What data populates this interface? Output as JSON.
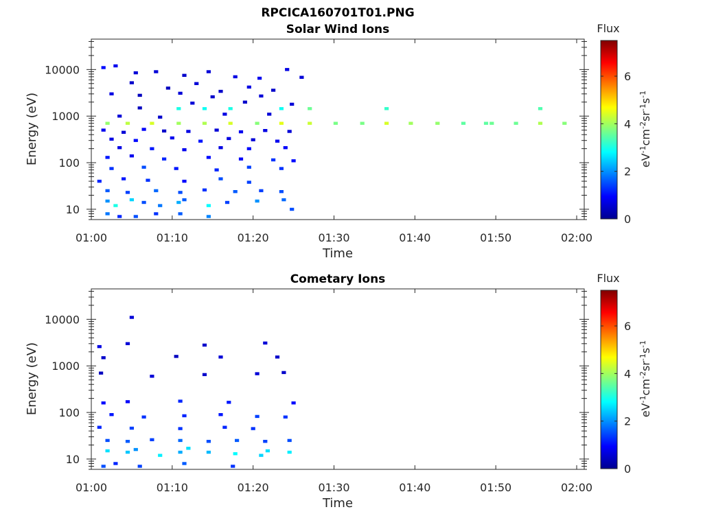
{
  "figure_title": "RPCICA160701T01.PNG",
  "colors": {
    "colormap": [
      "#00008f",
      "#0000ff",
      "#0080ff",
      "#00ffff",
      "#80ff80",
      "#ffff00",
      "#ff8000",
      "#ff0000",
      "#800000"
    ],
    "axis": "#262626",
    "background": "#ffffff"
  },
  "chart_data": [
    {
      "type": "heatmap",
      "title": "Solar Wind Ions",
      "xlabel": "Time",
      "ylabel": "Energy (eV)",
      "x_ticks": [
        "01:00",
        "01:10",
        "01:20",
        "01:30",
        "01:40",
        "01:50",
        "02:00"
      ],
      "xlim_minutes": [
        0,
        60
      ],
      "ylim": [
        6,
        45000
      ],
      "y_scale": "log",
      "y_ticks": [
        "10",
        "100",
        "1000",
        "10000"
      ],
      "colorbar": {
        "title": "Flux",
        "label": "eV-1cm-2sr-1s-1",
        "range": [
          0,
          7.5
        ],
        "ticks": [
          "0",
          "2",
          "4",
          "6"
        ]
      },
      "cells": [
        [
          2.0,
          700,
          3.9
        ],
        [
          4.5,
          700,
          4.2
        ],
        [
          7.5,
          700,
          4.4
        ],
        [
          10.8,
          700,
          4.0
        ],
        [
          14.0,
          700,
          4.1
        ],
        [
          17.2,
          700,
          4.4
        ],
        [
          20.5,
          700,
          3.8
        ],
        [
          23.5,
          700,
          4.5
        ],
        [
          27.0,
          700,
          4.3
        ],
        [
          30.2,
          700,
          3.7
        ],
        [
          33.5,
          700,
          3.7
        ],
        [
          36.5,
          700,
          4.4
        ],
        [
          39.5,
          700,
          4.0
        ],
        [
          42.8,
          700,
          3.9
        ],
        [
          46.0,
          700,
          3.5
        ],
        [
          48.8,
          700,
          3.5
        ],
        [
          49.5,
          700,
          3.6
        ],
        [
          52.5,
          700,
          3.6
        ],
        [
          55.5,
          700,
          4.1
        ],
        [
          58.5,
          700,
          3.8
        ],
        [
          27.0,
          1450,
          3.6
        ],
        [
          36.5,
          1450,
          3.2
        ],
        [
          55.5,
          1450,
          3.4
        ],
        [
          10.8,
          1450,
          3.0
        ],
        [
          14.0,
          1450,
          2.9
        ],
        [
          17.2,
          1450,
          3.0
        ],
        [
          23.5,
          1450,
          2.9
        ],
        [
          1.5,
          11000,
          1.0
        ],
        [
          3.0,
          12000,
          0.8
        ],
        [
          5.5,
          8500,
          0.6
        ],
        [
          8.0,
          9000,
          0.6
        ],
        [
          11.5,
          7500,
          0.5
        ],
        [
          14.5,
          9000,
          0.6
        ],
        [
          17.8,
          7000,
          0.7
        ],
        [
          20.8,
          6500,
          0.8
        ],
        [
          24.2,
          10000,
          0.7
        ],
        [
          26.0,
          6800,
          0.6
        ],
        [
          5.0,
          5200,
          0.5
        ],
        [
          9.5,
          4000,
          0.4
        ],
        [
          13.0,
          5000,
          0.6
        ],
        [
          16.0,
          3400,
          0.5
        ],
        [
          19.5,
          4200,
          0.7
        ],
        [
          22.5,
          3600,
          0.5
        ],
        [
          2.5,
          3000,
          0.7
        ],
        [
          6.0,
          2800,
          0.4
        ],
        [
          11.0,
          3100,
          0.6
        ],
        [
          15.0,
          2600,
          0.5
        ],
        [
          21.0,
          2700,
          0.6
        ],
        [
          6.0,
          1500,
          0.4
        ],
        [
          12.5,
          1900,
          0.6
        ],
        [
          19.0,
          2000,
          0.5
        ],
        [
          24.8,
          1800,
          0.6
        ],
        [
          3.5,
          1000,
          0.6
        ],
        [
          8.5,
          950,
          0.5
        ],
        [
          16.5,
          1100,
          0.7
        ],
        [
          22.0,
          1100,
          0.6
        ],
        [
          1.5,
          500,
          0.8
        ],
        [
          4.0,
          450,
          0.6
        ],
        [
          6.5,
          520,
          0.9
        ],
        [
          9.0,
          480,
          0.5
        ],
        [
          12.0,
          470,
          0.7
        ],
        [
          15.5,
          500,
          0.6
        ],
        [
          18.5,
          460,
          0.8
        ],
        [
          21.5,
          490,
          0.7
        ],
        [
          24.5,
          470,
          0.6
        ],
        [
          2.5,
          320,
          0.7
        ],
        [
          5.5,
          300,
          1.0
        ],
        [
          10.0,
          340,
          0.8
        ],
        [
          13.5,
          290,
          1.1
        ],
        [
          17.0,
          330,
          0.7
        ],
        [
          20.0,
          310,
          0.6
        ],
        [
          23.0,
          290,
          0.8
        ],
        [
          3.5,
          210,
          0.7
        ],
        [
          7.5,
          200,
          1.1
        ],
        [
          11.5,
          190,
          0.8
        ],
        [
          16.0,
          210,
          0.7
        ],
        [
          19.5,
          200,
          1.0
        ],
        [
          24.0,
          210,
          0.9
        ],
        [
          2.0,
          130,
          1.1
        ],
        [
          5.0,
          140,
          0.8
        ],
        [
          9.0,
          120,
          1.2
        ],
        [
          14.5,
          130,
          1.0
        ],
        [
          18.5,
          120,
          0.9
        ],
        [
          22.5,
          115,
          1.3
        ],
        [
          25.0,
          110,
          1.0
        ],
        [
          2.5,
          75,
          1.3
        ],
        [
          6.5,
          80,
          1.5
        ],
        [
          10.5,
          75,
          1.1
        ],
        [
          15.5,
          70,
          1.2
        ],
        [
          19.5,
          80,
          1.4
        ],
        [
          23.5,
          75,
          1.3
        ],
        [
          1.0,
          40,
          1.2
        ],
        [
          4.0,
          45,
          1.1
        ],
        [
          7.0,
          42,
          1.3
        ],
        [
          11.5,
          40,
          1.0
        ],
        [
          16.0,
          45,
          1.5
        ],
        [
          19.5,
          38,
          1.4
        ],
        [
          2.0,
          25,
          1.6
        ],
        [
          4.5,
          23,
          1.4
        ],
        [
          8.0,
          25,
          1.7
        ],
        [
          11.0,
          23,
          1.5
        ],
        [
          14.0,
          26,
          1.3
        ],
        [
          17.8,
          24,
          1.6
        ],
        [
          21.0,
          25,
          1.4
        ],
        [
          23.5,
          24,
          1.5
        ],
        [
          2.0,
          15,
          2.0
        ],
        [
          3.0,
          12,
          3.0
        ],
        [
          5.0,
          16,
          2.5
        ],
        [
          6.5,
          14,
          1.5
        ],
        [
          8.5,
          12,
          1.8
        ],
        [
          10.8,
          14,
          2.2
        ],
        [
          11.5,
          16,
          1.6
        ],
        [
          14.5,
          12,
          2.8
        ],
        [
          16.8,
          14,
          1.4
        ],
        [
          20.5,
          15,
          2.0
        ],
        [
          23.8,
          16,
          1.7
        ],
        [
          24.8,
          10,
          1.5
        ],
        [
          2.0,
          8,
          1.8
        ],
        [
          3.5,
          7,
          1.2
        ],
        [
          5.5,
          7,
          1.5
        ],
        [
          8.0,
          8,
          1.3
        ],
        [
          11.0,
          8,
          1.6
        ],
        [
          14.5,
          7,
          1.9
        ]
      ]
    },
    {
      "type": "heatmap",
      "title": "Cometary Ions",
      "xlabel": "Time",
      "ylabel": "Energy (eV)",
      "x_ticks": [
        "01:00",
        "01:10",
        "01:20",
        "01:30",
        "01:40",
        "01:50",
        "02:00"
      ],
      "xlim_minutes": [
        0,
        60
      ],
      "ylim": [
        6,
        45000
      ],
      "y_scale": "log",
      "y_ticks": [
        "10",
        "100",
        "1000",
        "10000"
      ],
      "colorbar": {
        "title": "Flux",
        "label": "eV-1cm-2sr-1s-1",
        "range": [
          0,
          7.5
        ],
        "ticks": [
          "0",
          "2",
          "4",
          "6"
        ]
      },
      "cells": [
        [
          5.0,
          11000,
          0.6
        ],
        [
          1.0,
          2600,
          0.7
        ],
        [
          4.5,
          3000,
          0.6
        ],
        [
          14.0,
          2800,
          0.5
        ],
        [
          21.5,
          3100,
          0.6
        ],
        [
          1.5,
          1500,
          0.5
        ],
        [
          10.5,
          1600,
          0.4
        ],
        [
          16.0,
          1550,
          0.6
        ],
        [
          23.0,
          1550,
          0.5
        ],
        [
          1.2,
          700,
          0.4
        ],
        [
          7.5,
          600,
          0.6
        ],
        [
          14.0,
          650,
          0.5
        ],
        [
          20.5,
          680,
          0.6
        ],
        [
          23.8,
          720,
          0.5
        ],
        [
          1.5,
          160,
          1.0
        ],
        [
          4.5,
          170,
          0.9
        ],
        [
          11.0,
          175,
          1.2
        ],
        [
          17.0,
          165,
          1.1
        ],
        [
          25.0,
          160,
          1.0
        ],
        [
          2.5,
          90,
          1.1
        ],
        [
          6.5,
          80,
          1.3
        ],
        [
          11.5,
          85,
          1.2
        ],
        [
          16.0,
          90,
          1.1
        ],
        [
          20.5,
          82,
          1.4
        ],
        [
          24.0,
          80,
          1.3
        ],
        [
          1.0,
          48,
          1.2
        ],
        [
          5.0,
          46,
          1.4
        ],
        [
          11.0,
          45,
          1.3
        ],
        [
          16.5,
          48,
          1.2
        ],
        [
          20.0,
          45,
          1.3
        ],
        [
          2.0,
          25,
          1.5
        ],
        [
          4.5,
          24,
          1.6
        ],
        [
          7.5,
          26,
          1.4
        ],
        [
          11.0,
          25,
          1.7
        ],
        [
          14.5,
          24,
          1.5
        ],
        [
          18.0,
          25,
          1.6
        ],
        [
          21.5,
          24,
          1.4
        ],
        [
          24.5,
          25,
          1.5
        ],
        [
          2.0,
          15,
          2.6
        ],
        [
          4.5,
          14,
          2.4
        ],
        [
          5.5,
          16,
          2.0
        ],
        [
          8.5,
          12,
          2.7
        ],
        [
          11.0,
          14,
          2.2
        ],
        [
          12.0,
          17,
          2.6
        ],
        [
          14.5,
          14,
          2.3
        ],
        [
          17.8,
          13,
          2.8
        ],
        [
          21.0,
          12,
          2.5
        ],
        [
          21.8,
          15,
          2.6
        ],
        [
          24.5,
          14,
          2.7
        ],
        [
          1.5,
          7,
          1.5
        ],
        [
          3.0,
          8,
          1.2
        ],
        [
          6.0,
          7,
          1.4
        ],
        [
          11.5,
          8,
          1.6
        ],
        [
          17.5,
          7,
          1.3
        ]
      ]
    }
  ]
}
